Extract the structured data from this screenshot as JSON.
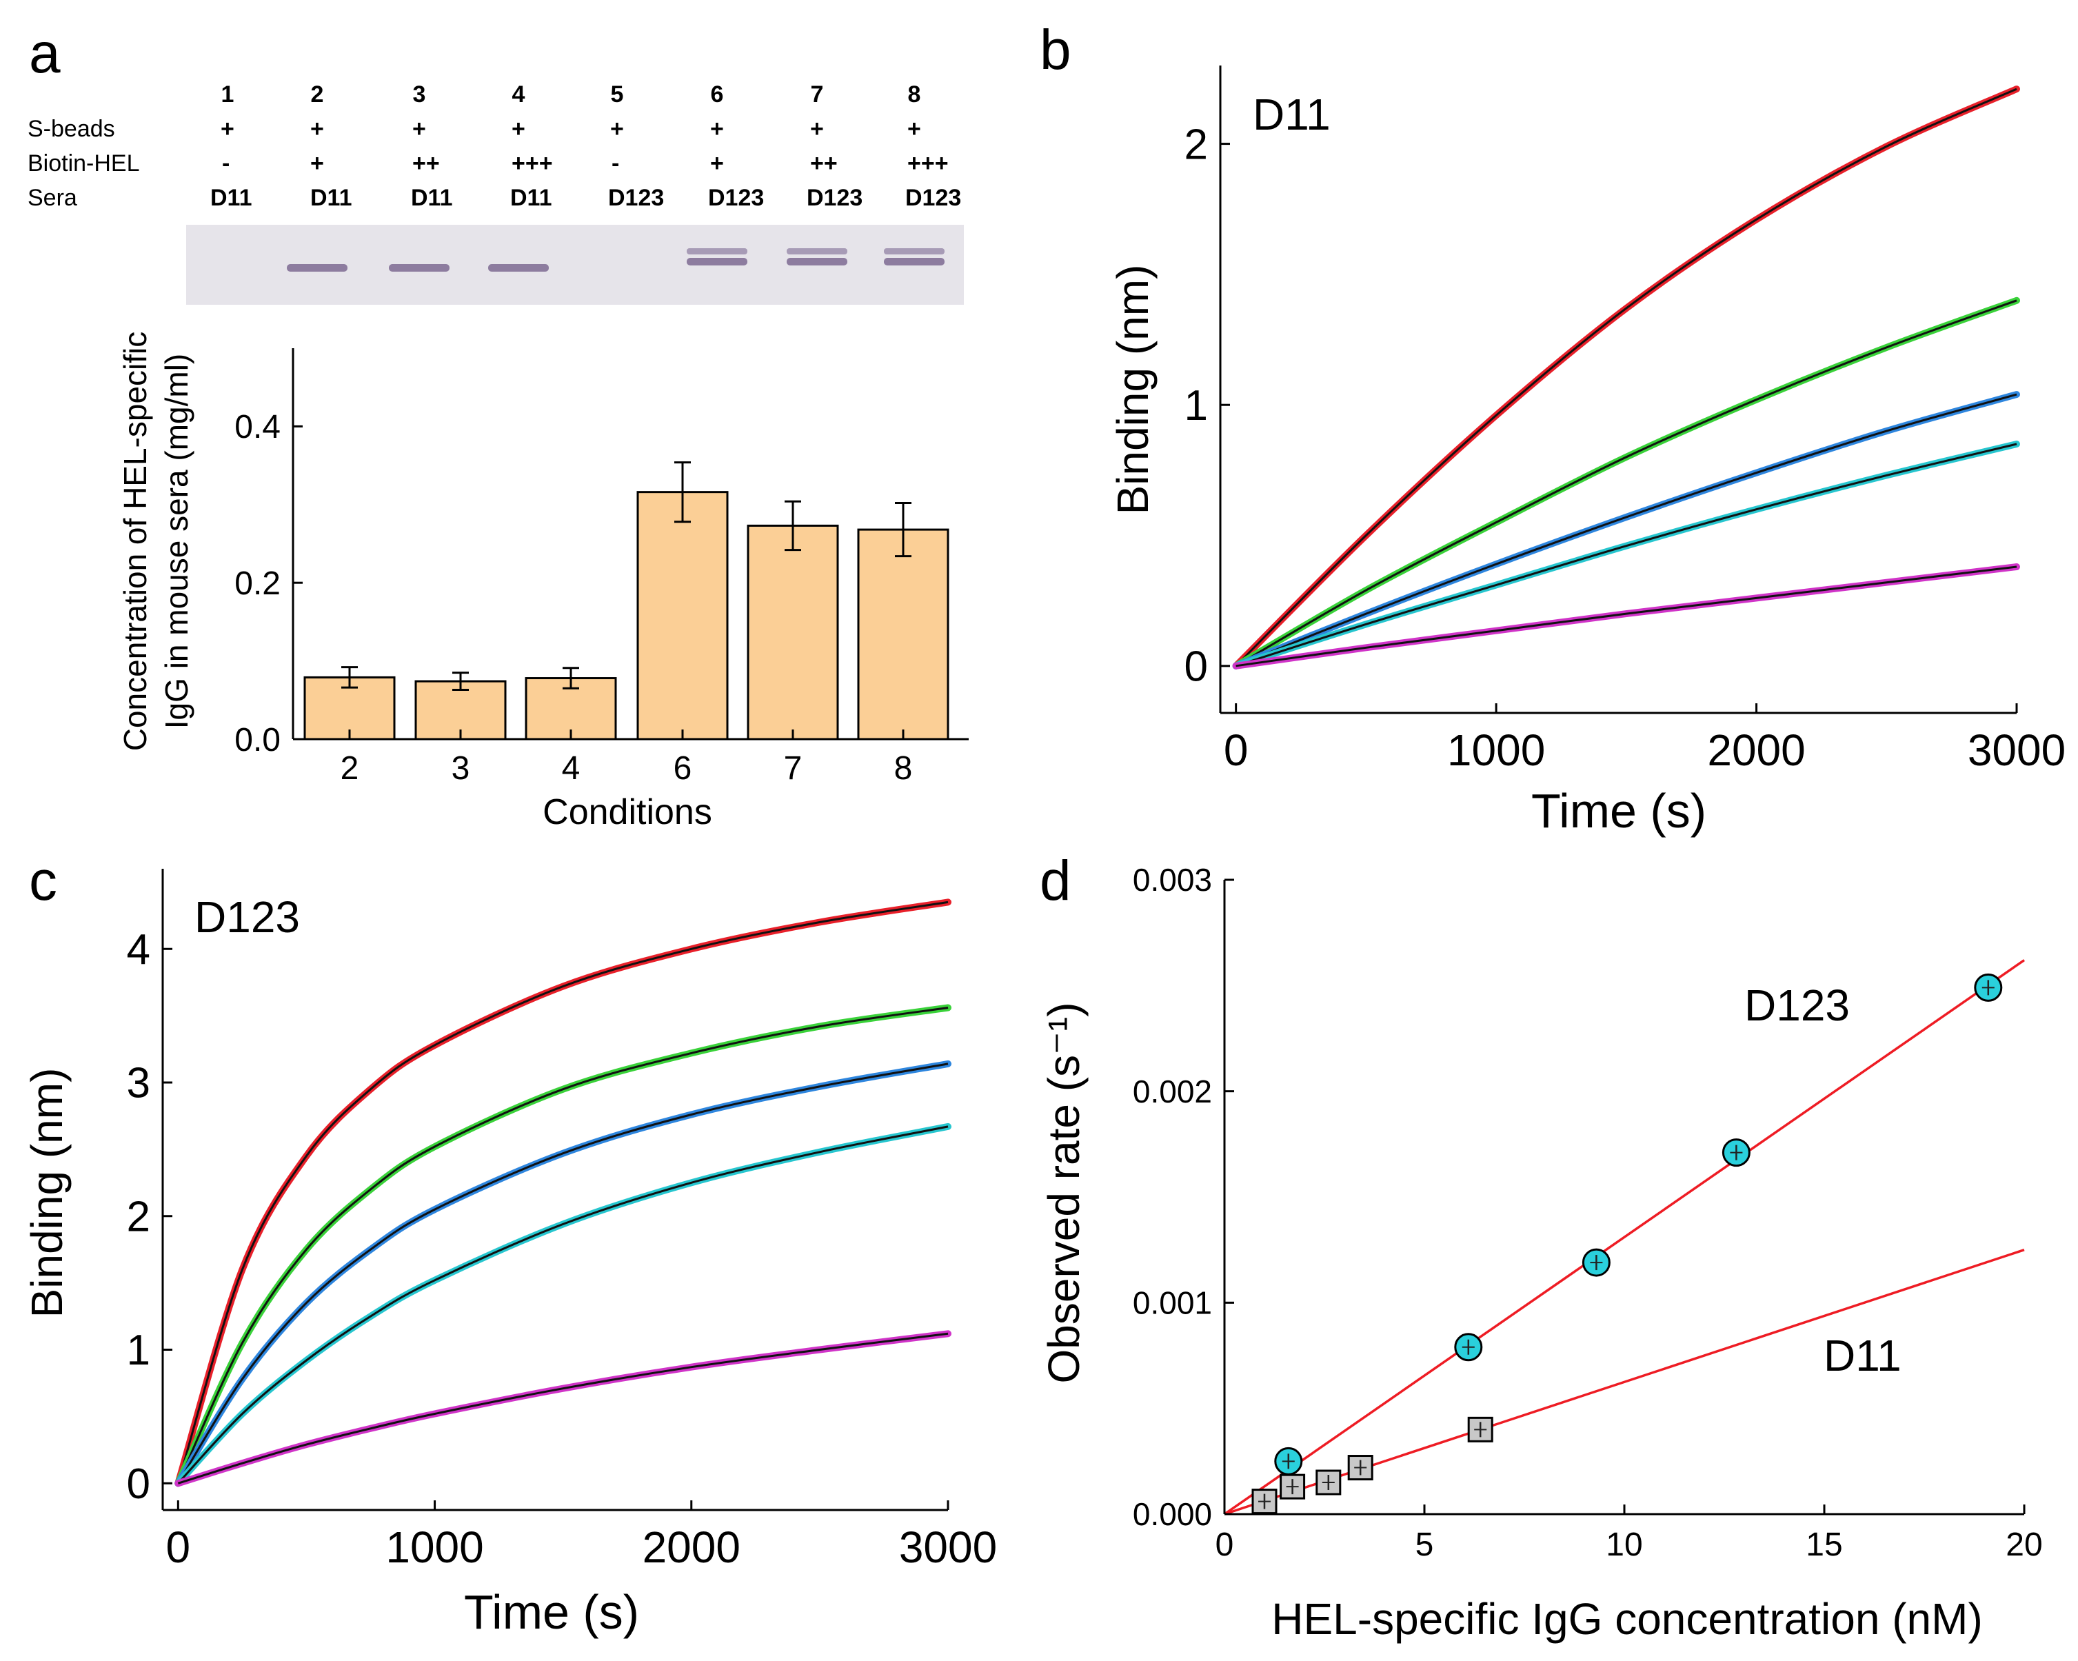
{
  "figure": {
    "panels": [
      "a",
      "b",
      "c",
      "d"
    ],
    "gel": {
      "lane_numbers": [
        "1",
        "2",
        "3",
        "4",
        "5",
        "6",
        "7",
        "8"
      ],
      "rows": [
        {
          "label": "S-beads",
          "values": [
            "+",
            "+",
            "+",
            "+",
            "+",
            "+",
            "+",
            "+"
          ]
        },
        {
          "label": "Biotin-HEL",
          "values": [
            "-",
            "+",
            "++",
            "+++",
            "-",
            "+",
            "++",
            "+++"
          ]
        },
        {
          "label": "Sera",
          "values": [
            "D11",
            "D11",
            "D11",
            "D11",
            "D123",
            "D123",
            "D123",
            "D123"
          ]
        }
      ],
      "band_lanes": [
        false,
        true,
        true,
        true,
        false,
        true,
        true,
        true
      ],
      "band_color": "#7d6a92"
    }
  },
  "chart_data": [
    {
      "panel": "a",
      "type": "bar",
      "categories": [
        "2",
        "3",
        "4",
        "6",
        "7",
        "8"
      ],
      "values": [
        0.079,
        0.074,
        0.078,
        0.316,
        0.273,
        0.268
      ],
      "errors": [
        0.013,
        0.011,
        0.013,
        0.038,
        0.031,
        0.034
      ],
      "xlabel": "Conditions",
      "ylabel": [
        "Concentration of HEL-specific",
        "IgG in mouse sera (mg/ml)"
      ],
      "ylim": [
        0,
        0.5
      ],
      "yticks": [
        "0.0",
        "0.2",
        "0.4"
      ],
      "bar_color": "#fbcf96"
    },
    {
      "panel": "b",
      "type": "line",
      "label": "D11",
      "xlabel": "Time (s)",
      "ylabel": "Binding (nm)",
      "xlim": [
        -60,
        3000
      ],
      "ylim": [
        -0.18,
        2.3
      ],
      "xticks": [
        "0",
        "1000",
        "2000",
        "3000"
      ],
      "yticks": [
        "0",
        "1",
        "2"
      ],
      "x": [
        0,
        500,
        1000,
        1500,
        2000,
        2500,
        3000
      ],
      "series": [
        {
          "name": "red",
          "color": "#e8202a",
          "values": [
            0,
            0.5,
            0.96,
            1.37,
            1.71,
            1.99,
            2.21
          ]
        },
        {
          "name": "green",
          "color": "#3ad23a",
          "values": [
            0,
            0.29,
            0.55,
            0.8,
            1.02,
            1.22,
            1.4
          ]
        },
        {
          "name": "blue",
          "color": "#2e86de",
          "values": [
            0,
            0.2,
            0.39,
            0.57,
            0.74,
            0.9,
            1.04
          ]
        },
        {
          "name": "cyan",
          "color": "#27c6cf",
          "values": [
            0,
            0.16,
            0.31,
            0.46,
            0.6,
            0.73,
            0.85
          ]
        },
        {
          "name": "magenta",
          "color": "#d034c8",
          "values": [
            0,
            0.07,
            0.135,
            0.2,
            0.26,
            0.32,
            0.38
          ]
        }
      ]
    },
    {
      "panel": "c",
      "type": "line",
      "label": "D123",
      "xlabel": "Time (s)",
      "ylabel": "Binding (nm)",
      "xlim": [
        -60,
        3000
      ],
      "ylim": [
        -0.2,
        4.6
      ],
      "xticks": [
        "0",
        "1000",
        "2000",
        "3000"
      ],
      "yticks": [
        "0",
        "1",
        "2",
        "3",
        "4"
      ],
      "x": [
        0,
        250,
        500,
        750,
        1000,
        1500,
        2000,
        2500,
        3000
      ],
      "series": [
        {
          "name": "red",
          "color": "#e8202a",
          "values": [
            0,
            1.6,
            2.45,
            2.95,
            3.28,
            3.72,
            4.0,
            4.2,
            4.35
          ]
        },
        {
          "name": "green",
          "color": "#3ad23a",
          "values": [
            0,
            1.05,
            1.75,
            2.2,
            2.52,
            2.95,
            3.22,
            3.42,
            3.56
          ]
        },
        {
          "name": "blue",
          "color": "#2e86de",
          "values": [
            0,
            0.78,
            1.35,
            1.75,
            2.05,
            2.47,
            2.76,
            2.97,
            3.14
          ]
        },
        {
          "name": "cyan",
          "color": "#27c6cf",
          "values": [
            0,
            0.52,
            0.92,
            1.25,
            1.52,
            1.94,
            2.25,
            2.48,
            2.67
          ]
        },
        {
          "name": "magenta",
          "color": "#d034c8",
          "values": [
            0,
            0.15,
            0.29,
            0.41,
            0.52,
            0.71,
            0.87,
            1.0,
            1.12
          ]
        }
      ]
    },
    {
      "panel": "d",
      "type": "scatter",
      "xlabel": "HEL-specific IgG concentration (nM)",
      "ylabel": "Observed rate (s⁻¹)",
      "xlim": [
        0,
        20
      ],
      "ylim": [
        0,
        0.003
      ],
      "xticks": [
        "0",
        "5",
        "10",
        "15",
        "20"
      ],
      "yticks": [
        "0.000",
        "0.001",
        "0.002",
        "0.003"
      ],
      "series": [
        {
          "name": "D123",
          "marker": "circle",
          "color": "#2ad0dc",
          "x": [
            1.6,
            6.1,
            9.3,
            12.8,
            19.1
          ],
          "y": [
            0.00025,
            0.00079,
            0.00119,
            0.00171,
            0.00249
          ],
          "fit": {
            "x": [
              0,
              20
            ],
            "y": [
              0.0,
              0.00262
            ]
          }
        },
        {
          "name": "D11",
          "marker": "square",
          "color": "#c8c8c8",
          "x": [
            1.0,
            1.7,
            2.6,
            3.4,
            6.4
          ],
          "y": [
            6e-05,
            0.00013,
            0.00015,
            0.00022,
            0.0004
          ],
          "fit": {
            "x": [
              0,
              20
            ],
            "y": [
              0.0,
              0.00125
            ]
          }
        }
      ]
    }
  ]
}
